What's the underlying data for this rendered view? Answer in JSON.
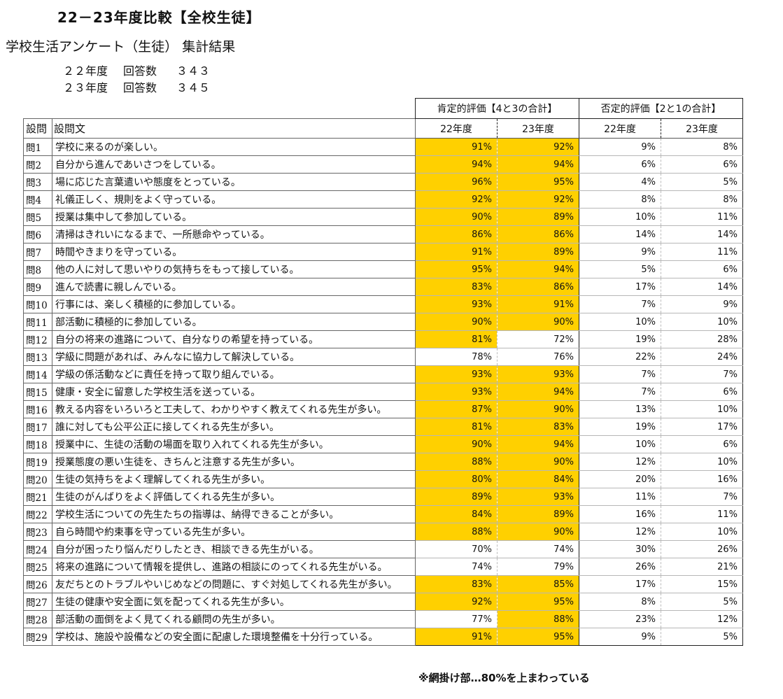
{
  "title": "22－23年度比較【全校生徒】",
  "subtitle": "学校生活アンケート（生徒）  集計結果",
  "responses": [
    {
      "year": "２２年度",
      "label": "回答数",
      "count": "３４３"
    },
    {
      "year": "２３年度",
      "label": "回答数",
      "count": "３４５"
    }
  ],
  "table": {
    "positive_header": "肯定的評価【4と3の合計】",
    "negative_header": "否定的評価【2と1の合計】",
    "col_question_no": "設問",
    "col_question_text": "設問文",
    "year_22": "22年度",
    "year_23": "23年度",
    "rows": [
      {
        "no": "問1",
        "text": "学校に来るのが楽しい。",
        "p22": "91%",
        "p23": "92%",
        "n22": "9%",
        "n23": "8%",
        "hl22": true,
        "hl23": true
      },
      {
        "no": "問2",
        "text": "自分から進んであいさつをしている。",
        "p22": "94%",
        "p23": "94%",
        "n22": "6%",
        "n23": "6%",
        "hl22": true,
        "hl23": true
      },
      {
        "no": "問3",
        "text": "場に応じた言葉遣いや態度をとっている。",
        "p22": "96%",
        "p23": "95%",
        "n22": "4%",
        "n23": "5%",
        "hl22": true,
        "hl23": true
      },
      {
        "no": "問4",
        "text": "礼儀正しく、規則をよく守っている。",
        "p22": "92%",
        "p23": "92%",
        "n22": "8%",
        "n23": "8%",
        "hl22": true,
        "hl23": true
      },
      {
        "no": "問5",
        "text": "授業は集中して参加している。",
        "p22": "90%",
        "p23": "89%",
        "n22": "10%",
        "n23": "11%",
        "hl22": true,
        "hl23": true
      },
      {
        "no": "問6",
        "text": "清掃はきれいになるまで、一所懸命やっている。",
        "p22": "86%",
        "p23": "86%",
        "n22": "14%",
        "n23": "14%",
        "hl22": true,
        "hl23": true
      },
      {
        "no": "問7",
        "text": "時間やきまりを守っている。",
        "p22": "91%",
        "p23": "89%",
        "n22": "9%",
        "n23": "11%",
        "hl22": true,
        "hl23": true
      },
      {
        "no": "問8",
        "text": "他の人に対して思いやりの気持ちをもって接している。",
        "p22": "95%",
        "p23": "94%",
        "n22": "5%",
        "n23": "6%",
        "hl22": true,
        "hl23": true
      },
      {
        "no": "問9",
        "text": "進んで読書に親しんでいる。",
        "p22": "83%",
        "p23": "86%",
        "n22": "17%",
        "n23": "14%",
        "hl22": true,
        "hl23": true
      },
      {
        "no": "問10",
        "text": "行事には、楽しく積極的に参加している。",
        "p22": "93%",
        "p23": "91%",
        "n22": "7%",
        "n23": "9%",
        "hl22": true,
        "hl23": true
      },
      {
        "no": "問11",
        "text": "部活動に積極的に参加している。",
        "p22": "90%",
        "p23": "90%",
        "n22": "10%",
        "n23": "10%",
        "hl22": true,
        "hl23": true
      },
      {
        "no": "問12",
        "text": "自分の将来の進路について、自分なりの希望を持っている。",
        "p22": "81%",
        "p23": "72%",
        "n22": "19%",
        "n23": "28%",
        "hl22": true,
        "hl23": false
      },
      {
        "no": "問13",
        "text": "学級に問題があれば、みんなに協力して解決している。",
        "p22": "78%",
        "p23": "76%",
        "n22": "22%",
        "n23": "24%",
        "hl22": false,
        "hl23": false
      },
      {
        "no": "問14",
        "text": "学級の係活動などに責任を持って取り組んでいる。",
        "p22": "93%",
        "p23": "93%",
        "n22": "7%",
        "n23": "7%",
        "hl22": true,
        "hl23": true
      },
      {
        "no": "問15",
        "text": "健康・安全に留意した学校生活を送っている。",
        "p22": "93%",
        "p23": "94%",
        "n22": "7%",
        "n23": "6%",
        "hl22": true,
        "hl23": true
      },
      {
        "no": "問16",
        "text": "教える内容をいろいろと工夫して、わかりやすく教えてくれる先生が多い。",
        "p22": "87%",
        "p23": "90%",
        "n22": "13%",
        "n23": "10%",
        "hl22": true,
        "hl23": true
      },
      {
        "no": "問17",
        "text": "誰に対しても公平公正に接してくれる先生が多い。",
        "p22": "81%",
        "p23": "83%",
        "n22": "19%",
        "n23": "17%",
        "hl22": true,
        "hl23": true
      },
      {
        "no": "問18",
        "text": "授業中に、生徒の活動の場面を取り入れてくれる先生が多い。",
        "p22": "90%",
        "p23": "94%",
        "n22": "10%",
        "n23": "6%",
        "hl22": true,
        "hl23": true
      },
      {
        "no": "問19",
        "text": "授業態度の悪い生徒を、きちんと注意する先生が多い。",
        "p22": "88%",
        "p23": "90%",
        "n22": "12%",
        "n23": "10%",
        "hl22": true,
        "hl23": true
      },
      {
        "no": "問20",
        "text": "生徒の気持ちをよく理解してくれる先生が多い。",
        "p22": "80%",
        "p23": "84%",
        "n22": "20%",
        "n23": "16%",
        "hl22": true,
        "hl23": true
      },
      {
        "no": "問21",
        "text": "生徒のがんばりをよく評価してくれる先生が多い。",
        "p22": "89%",
        "p23": "93%",
        "n22": "11%",
        "n23": "7%",
        "hl22": true,
        "hl23": true
      },
      {
        "no": "問22",
        "text": "学校生活についての先生たちの指導は、納得できることが多い。",
        "p22": "84%",
        "p23": "89%",
        "n22": "16%",
        "n23": "11%",
        "hl22": true,
        "hl23": true
      },
      {
        "no": "問23",
        "text": "自ら時間や約束事を守っている先生が多い。",
        "p22": "88%",
        "p23": "90%",
        "n22": "12%",
        "n23": "10%",
        "hl22": true,
        "hl23": true
      },
      {
        "no": "問24",
        "text": "自分が困ったり悩んだりしたとき、相談できる先生がいる。",
        "p22": "70%",
        "p23": "74%",
        "n22": "30%",
        "n23": "26%",
        "hl22": false,
        "hl23": false
      },
      {
        "no": "問25",
        "text": "将来の進路について情報を提供し、進路の相談にのってくれる先生がいる。",
        "p22": "74%",
        "p23": "79%",
        "n22": "26%",
        "n23": "21%",
        "hl22": false,
        "hl23": false
      },
      {
        "no": "問26",
        "text": "友だちとのトラブルやいじめなどの問題に、すぐ対処してくれる先生が多い。",
        "p22": "83%",
        "p23": "85%",
        "n22": "17%",
        "n23": "15%",
        "hl22": true,
        "hl23": true
      },
      {
        "no": "問27",
        "text": "生徒の健康や安全面に気を配ってくれる先生が多い。",
        "p22": "92%",
        "p23": "95%",
        "n22": "8%",
        "n23": "5%",
        "hl22": true,
        "hl23": true
      },
      {
        "no": "問28",
        "text": "部活動の面倒をよく見てくれる顧問の先生が多い。",
        "p22": "77%",
        "p23": "88%",
        "n22": "23%",
        "n23": "12%",
        "hl22": false,
        "hl23": true
      },
      {
        "no": "問29",
        "text": "学校は、施設や設備などの安全面に配慮した環境整備を十分行っている。",
        "p22": "91%",
        "p23": "95%",
        "n22": "9%",
        "n23": "5%",
        "hl22": true,
        "hl23": true
      }
    ]
  },
  "footnote": "※網掛け部…80%を上まわっている",
  "colors": {
    "highlight": "#ffd000",
    "border": "#222222",
    "text": "#111111"
  }
}
